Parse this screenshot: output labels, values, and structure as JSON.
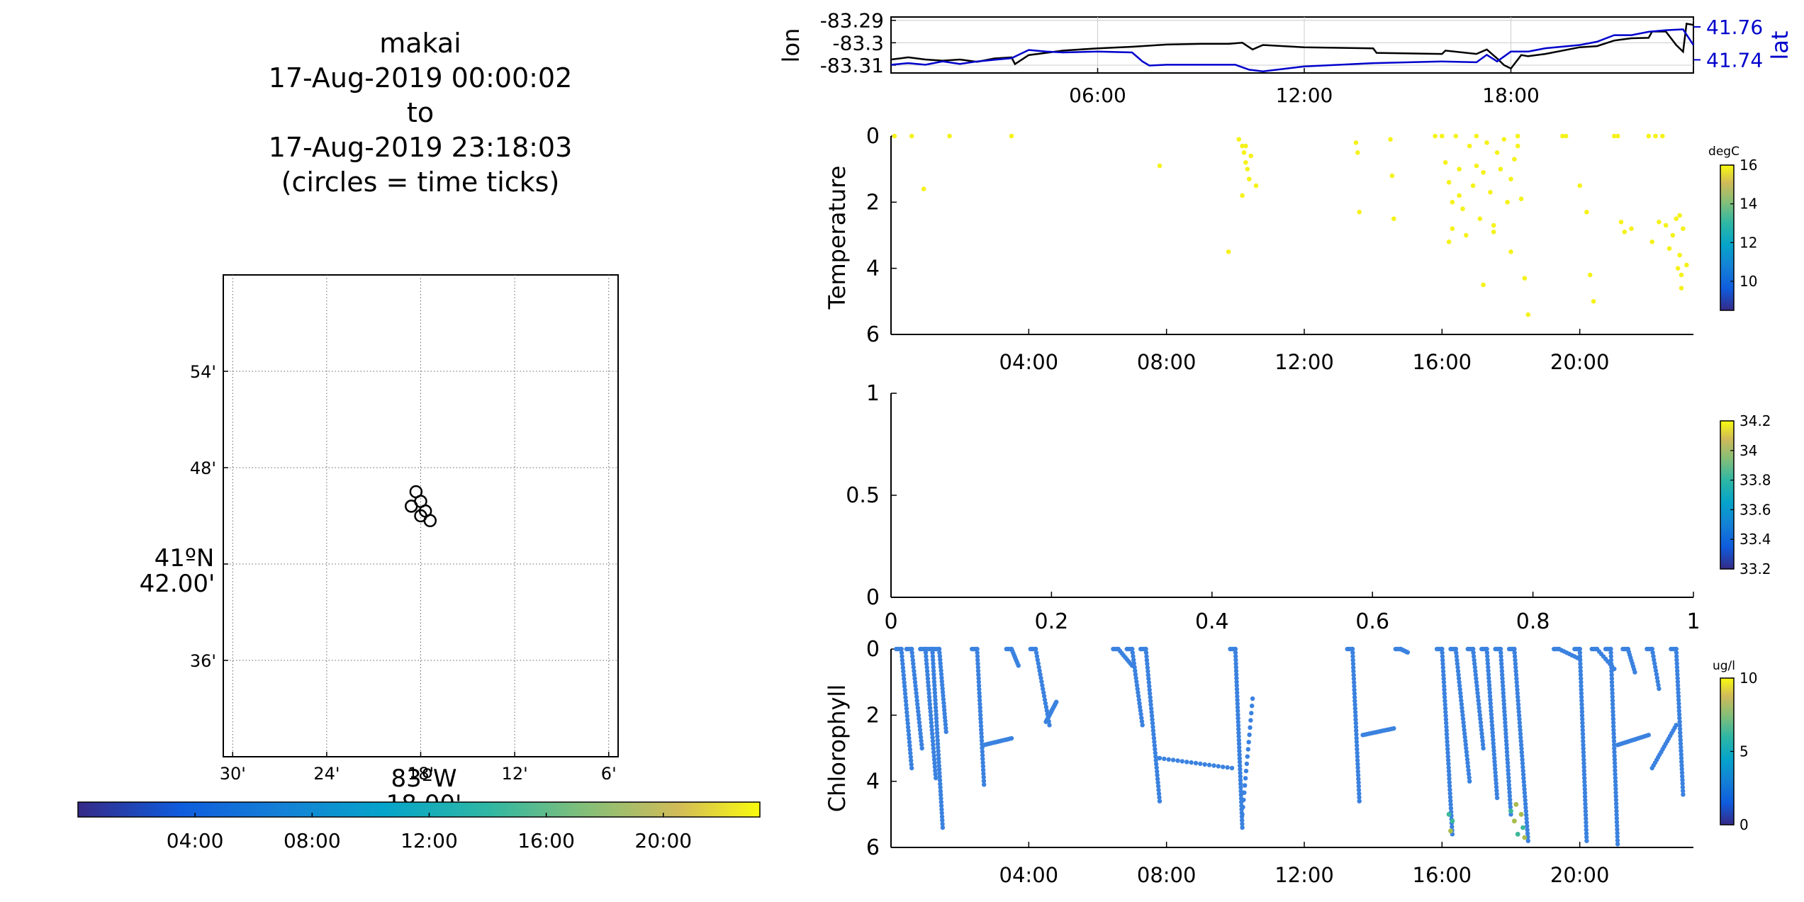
{
  "map_title": [
    "makai",
    "17-Aug-2019 00:00:02",
    "to",
    "17-Aug-2019 23:18:03",
    "(circles = time ticks)"
  ],
  "colors": {
    "lon": "#000000",
    "lat": "#0000cc",
    "scatter_temp": "#f5f21c",
    "scatter_chl": "#3b82e0"
  },
  "chart_data": [
    {
      "id": "track_map",
      "type": "scatter",
      "x_ticks": [
        "30'",
        "24'",
        "18'",
        "12'",
        "6'"
      ],
      "x_tick_values": [
        -83.5,
        -83.4,
        -83.3,
        -83.2,
        -83.1
      ],
      "y_ticks": [
        "54'",
        "48'",
        "42.00'",
        "36'"
      ],
      "y_tick_values": [
        41.9,
        41.8,
        41.7,
        41.6
      ],
      "xlabel_lines": [
        "83ºW",
        "18.00'"
      ],
      "ylabel_lines": [
        "41ºN",
        "42.00'"
      ],
      "xlim": [
        -83.51,
        -83.09
      ],
      "ylim": [
        41.5,
        42.0
      ],
      "points_lon": [
        -83.31,
        -83.3,
        -83.305,
        -83.29,
        -83.3,
        -83.295
      ],
      "points_lat": [
        41.76,
        41.765,
        41.775,
        41.745,
        41.75,
        41.755
      ],
      "colorbar": {
        "ticks": [
          "04:00",
          "08:00",
          "12:00",
          "16:00",
          "20:00"
        ],
        "tick_hours": [
          4,
          8,
          12,
          16,
          20
        ],
        "range_hours": [
          0,
          23.3
        ]
      }
    },
    {
      "id": "lon_lat",
      "type": "line",
      "ylabel": "lon",
      "ylabel_right": "lat",
      "y_ticks": [
        "-83.29",
        "-83.3",
        "-83.31"
      ],
      "y_tick_values": [
        -83.29,
        -83.3,
        -83.31
      ],
      "y_ticks_right": [
        "41.76",
        "41.74"
      ],
      "y_tick_values_right": [
        41.76,
        41.74
      ],
      "ylim": [
        -83.3135,
        -83.2885
      ],
      "ylim_right": [
        41.732,
        41.766
      ],
      "x_ticks": [
        "06:00",
        "12:00",
        "18:00"
      ],
      "x_tick_hours": [
        6,
        12,
        18
      ],
      "xlim_hours": [
        0,
        23.3
      ],
      "series": [
        {
          "name": "lon",
          "x": [
            0,
            0.5,
            1.0,
            1.5,
            2.0,
            2.5,
            3.0,
            3.5,
            3.6,
            4.0,
            4.5,
            5.0,
            6.0,
            7.0,
            8.0,
            9.0,
            9.8,
            10.2,
            10.5,
            10.8,
            12.0,
            14.0,
            14.1,
            16.0,
            16.1,
            17.0,
            17.3,
            17.6,
            17.8,
            18.0,
            18.3,
            18.5,
            19.0,
            20.0,
            20.5,
            21.0,
            21.5,
            22.0,
            22.1,
            22.5,
            22.8,
            23.0,
            23.1,
            23.3
          ],
          "y": [
            -83.3075,
            -83.3065,
            -83.3075,
            -83.308,
            -83.3075,
            -83.3085,
            -83.307,
            -83.3065,
            -83.3095,
            -83.3055,
            -83.3045,
            -83.3035,
            -83.3025,
            -83.3018,
            -83.3008,
            -83.3005,
            -83.3005,
            -83.3,
            -83.303,
            -83.301,
            -83.302,
            -83.3025,
            -83.3045,
            -83.305,
            -83.3035,
            -83.305,
            -83.303,
            -83.307,
            -83.31,
            -83.3115,
            -83.3055,
            -83.306,
            -83.305,
            -83.302,
            -83.3015,
            -83.299,
            -83.298,
            -83.2978,
            -83.295,
            -83.295,
            -83.301,
            -83.304,
            -83.2915,
            -83.292
          ]
        },
        {
          "name": "lat",
          "x": [
            0,
            0.5,
            1.0,
            1.5,
            2.0,
            2.5,
            3.0,
            3.5,
            4.0,
            4.5,
            5.0,
            6.0,
            7.0,
            7.3,
            7.5,
            8.0,
            9.0,
            10.0,
            10.4,
            10.8,
            12.0,
            14.0,
            16.0,
            17.0,
            17.3,
            17.6,
            18.0,
            18.5,
            19.0,
            20.0,
            20.5,
            21.0,
            21.5,
            22.0,
            22.5,
            23.0,
            23.3
          ],
          "y": [
            41.737,
            41.738,
            41.737,
            41.739,
            41.7375,
            41.739,
            41.74,
            41.741,
            41.746,
            41.745,
            41.7445,
            41.745,
            41.7445,
            41.739,
            41.7365,
            41.737,
            41.737,
            41.737,
            41.734,
            41.733,
            41.736,
            41.738,
            41.739,
            41.7385,
            41.743,
            41.739,
            41.745,
            41.745,
            41.747,
            41.749,
            41.751,
            41.755,
            41.755,
            41.757,
            41.758,
            41.7585,
            41.749
          ]
        }
      ]
    },
    {
      "id": "temperature",
      "type": "scatter",
      "ylabel": "Temperature",
      "y_ticks": [
        "0",
        "2",
        "4",
        "6"
      ],
      "y_tick_values": [
        0,
        2,
        4,
        6
      ],
      "ylim": [
        0,
        6
      ],
      "x_ticks": [
        "04:00",
        "08:00",
        "12:00",
        "16:00",
        "20:00"
      ],
      "x_tick_hours": [
        4,
        8,
        12,
        16,
        20
      ],
      "xlim_hours": [
        0,
        23.3
      ],
      "points_x": [
        0.1,
        0.6,
        1.7,
        3.5,
        0.95,
        7.8,
        10.1,
        10.2,
        10.25,
        10.3,
        10.35,
        10.4,
        10.45,
        10.2,
        10.3,
        10.6,
        9.8,
        13.5,
        13.55,
        13.6,
        14.5,
        14.55,
        14.6,
        15.8,
        16.0,
        16.1,
        16.2,
        16.3,
        16.3,
        16.4,
        16.5,
        16.6,
        16.7,
        16.8,
        16.9,
        17.0,
        17.1,
        17.2,
        17.3,
        17.4,
        17.5,
        17.6,
        17.7,
        17.8,
        17.9,
        18.0,
        18.1,
        18.2,
        18.3,
        18.4,
        16.2,
        16.5,
        17.0,
        17.5,
        18.0,
        18.5,
        17.2,
        18.2,
        19.5,
        19.6,
        20.0,
        20.2,
        20.3,
        20.4,
        21.0,
        21.1,
        21.2,
        21.3,
        21.5,
        22.0,
        22.1,
        22.2,
        22.3,
        22.4,
        22.5,
        22.6,
        22.7,
        22.8,
        22.85,
        22.9,
        22.95,
        23.0,
        23.1,
        22.9,
        22.95
      ],
      "points_y": [
        0.0,
        0.0,
        0.0,
        0.0,
        1.6,
        0.9,
        0.1,
        0.3,
        0.5,
        0.8,
        1.0,
        1.3,
        0.6,
        1.8,
        0.3,
        1.5,
        3.5,
        0.2,
        0.5,
        2.3,
        0.1,
        1.2,
        2.5,
        0.0,
        0.0,
        0.8,
        1.4,
        2.0,
        2.8,
        0.0,
        1.0,
        2.2,
        3.0,
        0.3,
        1.5,
        0.0,
        2.5,
        1.1,
        0.2,
        1.7,
        2.9,
        0.5,
        1.0,
        0.1,
        2.0,
        1.3,
        0.7,
        0.0,
        1.9,
        4.3,
        3.2,
        1.8,
        0.9,
        2.7,
        3.5,
        5.4,
        4.5,
        0.3,
        0.0,
        0.0,
        1.5,
        2.3,
        4.2,
        5.0,
        0.0,
        0.0,
        2.6,
        2.9,
        2.8,
        0.0,
        3.2,
        0.0,
        2.6,
        0.0,
        2.7,
        3.4,
        3.0,
        2.5,
        4.0,
        3.6,
        4.6,
        2.8,
        3.9,
        2.4,
        4.2
      ],
      "colorbar": {
        "label": "degC",
        "ticks": [
          "16",
          "14",
          "12",
          "10"
        ],
        "tick_values": [
          16,
          14,
          12,
          10
        ],
        "range": [
          8.5,
          16
        ]
      }
    },
    {
      "id": "salinity",
      "type": "scatter",
      "y_ticks": [
        "1",
        "0.5",
        "0"
      ],
      "y_tick_values": [
        1,
        0.5,
        0
      ],
      "x_ticks": [
        "0",
        "0.2",
        "0.4",
        "0.6",
        "0.8",
        "1"
      ],
      "x_tick_values": [
        0,
        0.2,
        0.4,
        0.6,
        0.8,
        1
      ],
      "xlim": [
        0,
        1
      ],
      "ylim": [
        0,
        1
      ],
      "colorbar": {
        "ticks": [
          "34.2",
          "34",
          "33.8",
          "33.6",
          "33.4",
          "33.2"
        ],
        "tick_values": [
          34.2,
          34,
          33.8,
          33.6,
          33.4,
          33.2
        ],
        "range": [
          33.2,
          34.2
        ]
      }
    },
    {
      "id": "chlorophyll",
      "type": "scatter",
      "ylabel": "Chlorophyll",
      "y_ticks": [
        "0",
        "2",
        "4",
        "6"
      ],
      "y_tick_values": [
        0,
        2,
        4,
        6
      ],
      "ylim": [
        0,
        6
      ],
      "x_ticks": [
        "04:00",
        "08:00",
        "12:00",
        "16:00",
        "20:00"
      ],
      "x_tick_hours": [
        4,
        8,
        12,
        16,
        20
      ],
      "xlim_hours": [
        0,
        23.3
      ],
      "profiles": [
        {
          "t0": 0.3,
          "t1": 0.6,
          "d": 3.6
        },
        {
          "t0": 0.6,
          "t1": 0.9,
          "d": 3.0
        },
        {
          "t0": 1.0,
          "t1": 1.3,
          "d": 3.9
        },
        {
          "t0": 1.2,
          "t1": 1.5,
          "d": 5.4
        },
        {
          "t0": 1.4,
          "t1": 1.6,
          "d": 2.5
        },
        {
          "t0": 2.5,
          "t1": 2.7,
          "d": 4.1
        },
        {
          "t0": 3.5,
          "t1": 3.7,
          "d": 0.5
        },
        {
          "t0": 4.2,
          "t1": 4.6,
          "d": 2.3
        },
        {
          "t0": 6.6,
          "t1": 7.0,
          "d": 0.5
        },
        {
          "t0": 7.0,
          "t1": 7.3,
          "d": 2.3
        },
        {
          "t0": 7.4,
          "t1": 7.8,
          "d": 4.6
        },
        {
          "t0": 10.0,
          "t1": 10.2,
          "d": 5.4
        },
        {
          "t0": 13.4,
          "t1": 13.6,
          "d": 4.6
        },
        {
          "t0": 14.8,
          "t1": 15.0,
          "d": 0.1
        },
        {
          "t0": 16.0,
          "t1": 16.3,
          "d": 5.6
        },
        {
          "t0": 16.4,
          "t1": 16.8,
          "d": 4.0
        },
        {
          "t0": 16.9,
          "t1": 17.2,
          "d": 3.0
        },
        {
          "t0": 17.3,
          "t1": 17.6,
          "d": 4.5
        },
        {
          "t0": 17.7,
          "t1": 18.0,
          "d": 5.0
        },
        {
          "t0": 18.1,
          "t1": 18.5,
          "d": 5.8
        },
        {
          "t0": 19.4,
          "t1": 20.0,
          "d": 0.3
        },
        {
          "t0": 20.0,
          "t1": 20.2,
          "d": 5.8
        },
        {
          "t0": 20.5,
          "t1": 21.0,
          "d": 0.6
        },
        {
          "t0": 20.9,
          "t1": 21.1,
          "d": 5.9
        },
        {
          "t0": 21.4,
          "t1": 21.6,
          "d": 0.7
        },
        {
          "t0": 22.1,
          "t1": 22.3,
          "d": 1.2
        },
        {
          "t0": 22.8,
          "t1": 23.0,
          "d": 4.4
        }
      ],
      "ramps": [
        {
          "t0": 2.7,
          "t1": 3.5,
          "d0": 2.9,
          "d1": 2.7
        },
        {
          "t0": 4.5,
          "t1": 4.8,
          "d0": 2.2,
          "d1": 1.6
        },
        {
          "t0": 7.8,
          "t1": 9.9,
          "d0": 3.3,
          "d1": 3.6
        },
        {
          "t0": 10.2,
          "t1": 10.5,
          "d0": 5.0,
          "d1": 1.5
        },
        {
          "t0": 13.7,
          "t1": 14.6,
          "d0": 2.6,
          "d1": 2.4
        },
        {
          "t0": 21.1,
          "t1": 22.0,
          "d0": 2.9,
          "d1": 2.6
        },
        {
          "t0": 22.1,
          "t1": 22.8,
          "d0": 3.6,
          "d1": 2.3
        }
      ],
      "high_points_x": [
        16.2,
        16.25,
        18.0,
        18.1,
        18.2,
        18.3,
        18.35,
        18.4,
        16.3,
        18.15
      ],
      "high_points_y": [
        5.0,
        5.5,
        4.9,
        5.2,
        5.6,
        5.0,
        5.4,
        5.7,
        5.2,
        4.7
      ],
      "colorbar": {
        "label": "ug/l",
        "ticks": [
          "10",
          "5",
          "0"
        ],
        "tick_values": [
          10,
          5,
          0
        ],
        "range": [
          0,
          10
        ]
      }
    }
  ]
}
